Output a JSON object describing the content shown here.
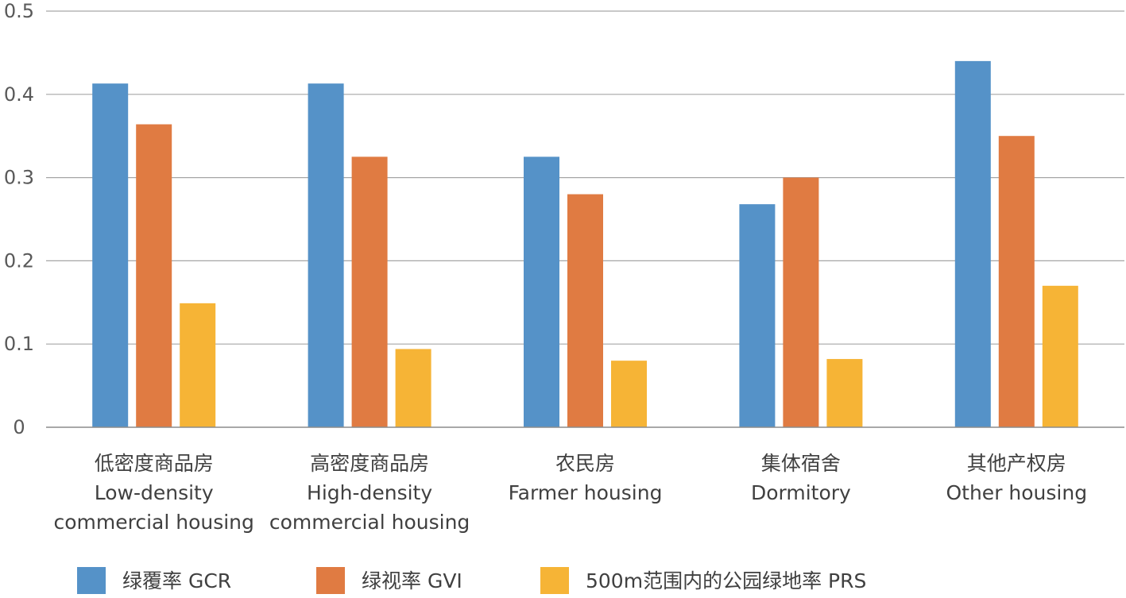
{
  "chart_data": {
    "type": "bar",
    "title": "",
    "xlabel": "",
    "ylabel": "",
    "ylim": [
      0,
      0.5
    ],
    "yticks": [
      "0",
      "0.1",
      "0.2",
      "0.3",
      "0.4",
      "0.5"
    ],
    "grid": true,
    "legend_position": "bottom",
    "categories": [
      [
        "低密度商品房",
        "Low-density",
        "commercial housing"
      ],
      [
        "高密度商品房",
        "High-density",
        "commercial housing"
      ],
      [
        "农民房",
        "Farmer housing"
      ],
      [
        "集体宿舍",
        "Dormitory"
      ],
      [
        "其他产权房",
        "Other housing"
      ]
    ],
    "series": [
      {
        "name": "绿覆率  GCR",
        "color": "#5592c8",
        "values": [
          0.413,
          0.413,
          0.325,
          0.268,
          0.44
        ]
      },
      {
        "name": "绿视率  GVI",
        "color": "#e07b42",
        "values": [
          0.364,
          0.325,
          0.28,
          0.3,
          0.35
        ]
      },
      {
        "name": "500m范围内的公园绿地率  PRS",
        "color": "#f6b436",
        "values": [
          0.149,
          0.094,
          0.08,
          0.082,
          0.17
        ]
      }
    ]
  }
}
